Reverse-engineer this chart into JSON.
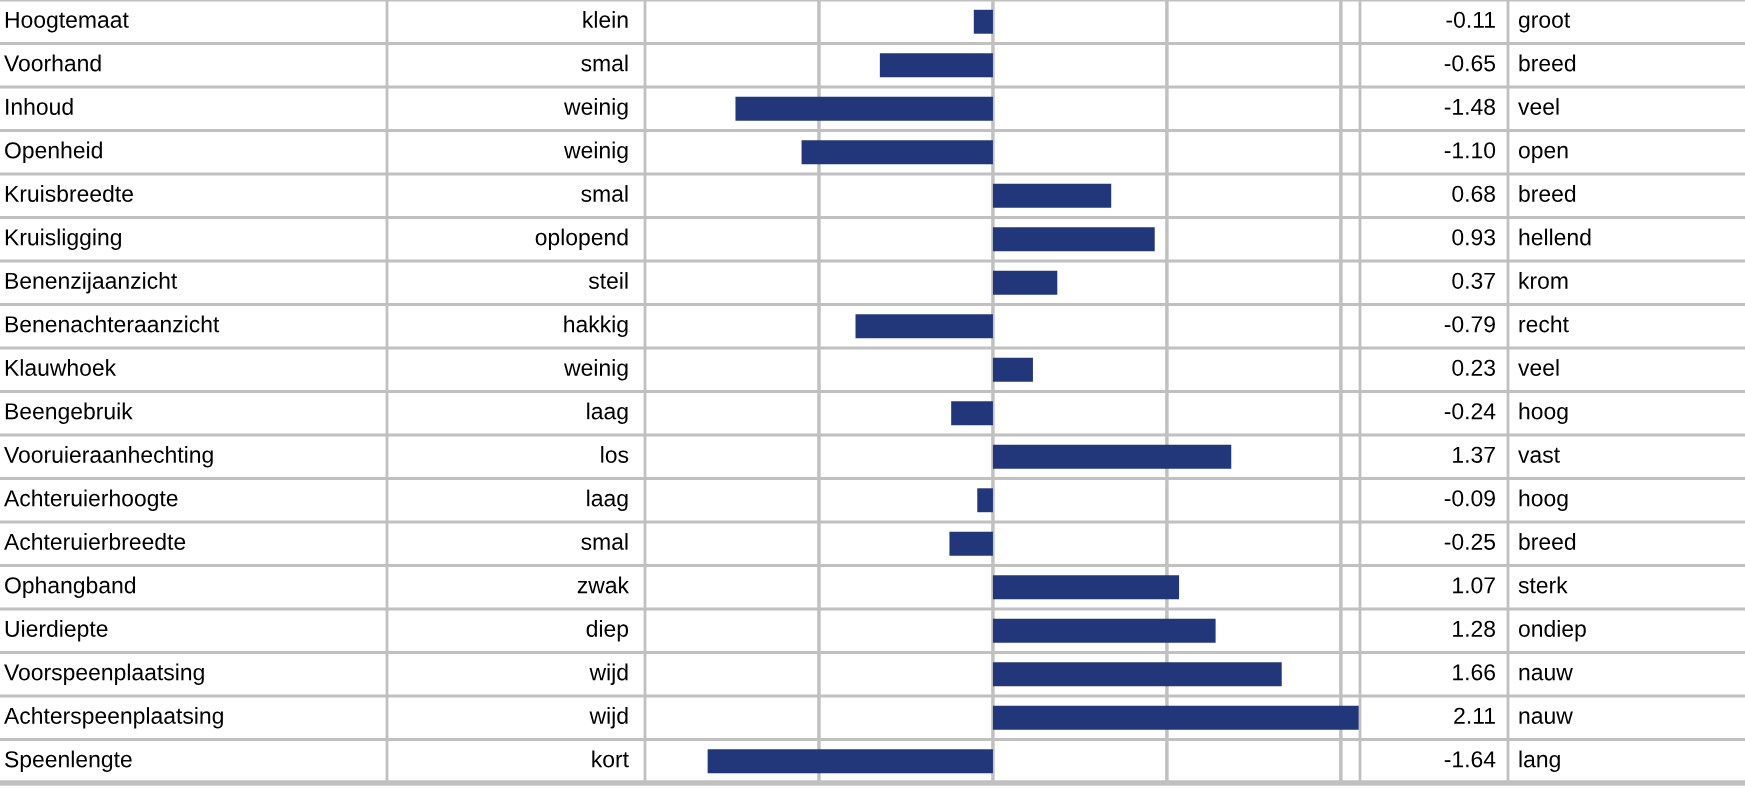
{
  "chart_data": {
    "type": "bar",
    "orientation": "horizontal",
    "categories": [
      "Hoogtemaat",
      "Voorhand",
      "Inhoud",
      "Openheid",
      "Kruisbreedte",
      "Kruisligging",
      "Benenzijaanzicht",
      "Benenachteraanzicht",
      "Klauwhoek",
      "Beengebruik",
      "Vooruieraanhechting",
      "Achteruierhoogte",
      "Achteruierbreedte",
      "Ophangband",
      "Uierdiepte",
      "Voorspeenplaatsing",
      "Achterspeenplaatsing",
      "Speenlengte"
    ],
    "values": [
      -0.11,
      -0.65,
      -1.48,
      -1.1,
      0.68,
      0.93,
      0.37,
      -0.79,
      0.23,
      -0.24,
      1.37,
      -0.09,
      -0.25,
      1.07,
      1.28,
      1.66,
      2.11,
      -1.64
    ],
    "value_labels": [
      "-0.11",
      "-0.65",
      "-1.48",
      "-1.10",
      "0.68",
      "0.93",
      "0.37",
      "-0.79",
      "0.23",
      "-0.24",
      "1.37",
      "-0.09",
      "-0.25",
      "1.07",
      "1.28",
      "1.66",
      "2.11",
      "-1.64"
    ],
    "color": "#22377a",
    "xlim": [
      -2,
      2.11
    ],
    "xticks": [
      {
        "value": -1,
        "label": null
      },
      {
        "value": 0,
        "label": null
      },
      {
        "value": 1,
        "label": null
      },
      {
        "value": 2,
        "label": null
      }
    ],
    "grid": "x",
    "annotations": [
      "klein",
      "smal",
      "weinig",
      "weinig",
      "smal",
      "oplopend",
      "steil",
      "hakkig",
      "weinig",
      "laag",
      "los",
      "laag",
      "smal",
      "zwak",
      "diep",
      "wijd",
      "wijd",
      "kort",
      "groot",
      "breed",
      "veel",
      "open",
      "breed",
      "hellend",
      "krom",
      "recht",
      "veel",
      "hoog",
      "vast",
      "hoog",
      "breed",
      "sterk",
      "ondiep",
      "nauw",
      "nauw",
      "lang"
    ]
  }
}
